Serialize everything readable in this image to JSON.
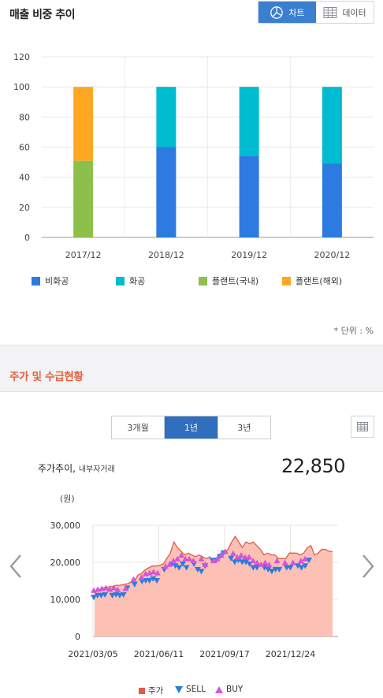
{
  "section1": {
    "title": "매출 비중 추이",
    "toggle": {
      "chart_label": "차트",
      "data_label": "데이터",
      "active": "chart"
    },
    "unit_note": "* 단위 : %"
  },
  "section2": {
    "title": "주가 및 수급현황",
    "periods": [
      "3개월",
      "1년",
      "3년"
    ],
    "active_period": "1년",
    "price_label": "주가추이,",
    "price_sublabel": "내부자거래",
    "price_value": "22,850",
    "yunit": "(원)"
  },
  "colors": {
    "bihwagong": "#2d7be0",
    "hwagong": "#00bcd0",
    "plant_domestic": "#8cc04a",
    "plant_overseas": "#ffa722",
    "price_fill": "#fcc0b4",
    "price_line": "#e05a45",
    "sell": "#2b7be0",
    "buy": "#d554d9",
    "accent": "#e3623d",
    "active_btn": "#2f6fbd"
  },
  "chart_data": [
    {
      "type": "bar",
      "stacked": true,
      "categories": [
        "2017/12",
        "2018/12",
        "2019/12",
        "2020/12"
      ],
      "series": [
        {
          "name": "비화공",
          "values": [
            0,
            60,
            54,
            49
          ]
        },
        {
          "name": "화공",
          "values": [
            0,
            40,
            46,
            51
          ]
        },
        {
          "name": "플랜트(국내)",
          "values": [
            51,
            0,
            0,
            0
          ]
        },
        {
          "name": "플랜트(해외)",
          "values": [
            49,
            0,
            0,
            0
          ]
        }
      ],
      "yticks": [
        "0",
        "20",
        "40",
        "60",
        "80",
        "100",
        "120"
      ],
      "ylim": [
        0,
        120
      ],
      "grid": true,
      "legend": "bottom"
    },
    {
      "type": "area",
      "xticks": [
        "2021/03/05",
        "2021/06/11",
        "2021/09/17",
        "2021/12/24"
      ],
      "yticks": [
        "0",
        "10,000",
        "20,000",
        "30,000"
      ],
      "ylim": [
        0,
        30000
      ],
      "grid": true,
      "legend": "bottom",
      "series": [
        {
          "name": "주가",
          "type": "area",
          "values": [
            12000,
            12500,
            13000,
            13200,
            13400,
            13500,
            13800,
            13800,
            14000,
            14200,
            14600,
            14900,
            16500,
            17000,
            18000,
            18500,
            19000,
            19000,
            19200,
            19500,
            21000,
            22500,
            25500,
            24000,
            23000,
            22000,
            22500,
            22000,
            21500,
            22000,
            21500,
            21000,
            21500,
            20000,
            21500,
            22500,
            22500,
            23500,
            25500,
            27000,
            25500,
            24000,
            25500,
            25000,
            25500,
            24500,
            23500,
            22000,
            22500,
            22000,
            22000,
            21000,
            21000,
            21000,
            22500,
            22500,
            22500,
            22000,
            22500,
            24000,
            24500,
            22000,
            22500,
            23500,
            23500,
            23000,
            22850
          ]
        },
        {
          "name": "SELL",
          "type": "marker",
          "values": [
            10500,
            11000,
            11000,
            11200,
            null,
            11000,
            11200,
            11000,
            11200,
            13000,
            null,
            14000,
            null,
            14800,
            15000,
            15000,
            15500,
            15000,
            null,
            18000,
            null,
            19500,
            19000,
            18500,
            19500,
            18500,
            null,
            19500,
            18000,
            17500,
            19000,
            null,
            20500,
            20500,
            21500,
            22500,
            null,
            21000,
            20000,
            20500,
            20000,
            20000,
            19500,
            18500,
            18500,
            null,
            18500,
            18000,
            17500,
            18000,
            18000,
            null,
            18500,
            18500,
            null,
            19000,
            18500,
            19000,
            20500
          ]
        },
        {
          "name": "BUY",
          "type": "marker",
          "values": [
            12500,
            12800,
            13000,
            13200,
            12800,
            13200,
            12700,
            null,
            13000,
            null,
            15500,
            null,
            16000,
            17000,
            17200,
            17500,
            17200,
            null,
            19000,
            19500,
            20500,
            21000,
            22000,
            21000,
            21000,
            20500,
            null,
            21000,
            19500,
            null,
            20500,
            21000,
            22000,
            23000,
            null,
            22500,
            21500,
            22000,
            21500,
            21500,
            20500,
            20000,
            19500,
            20000,
            19500,
            null,
            20500,
            null,
            20000,
            null,
            20000,
            null,
            20500,
            21000,
            null
          ]
        }
      ]
    }
  ]
}
